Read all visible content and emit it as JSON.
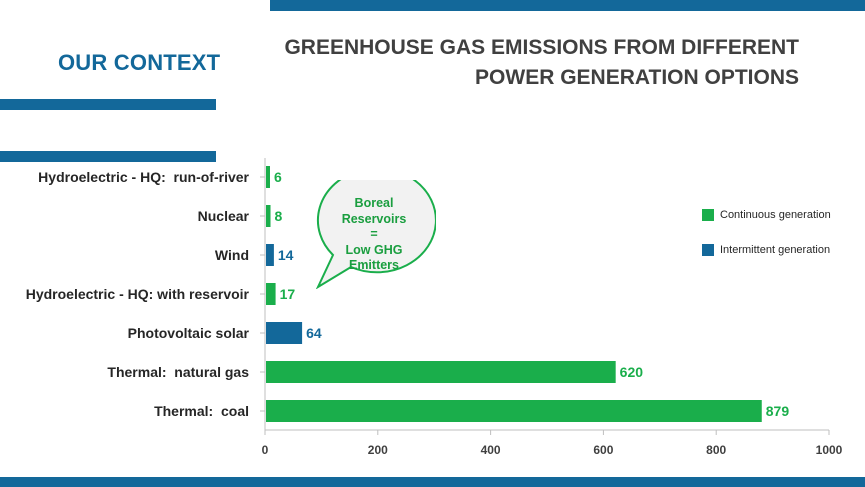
{
  "slide": {
    "section_title": "OUR CONTEXT",
    "title_line1": "GREENHOUSE GAS EMISSIONS FROM DIFFERENT",
    "title_line2": "POWER GENERATION OPTIONS"
  },
  "callout": {
    "lines": [
      "Boreal",
      "Reservoirs",
      "=",
      "Low GHG",
      "Emitters"
    ]
  },
  "colors": {
    "continuous": "#1aae4b",
    "intermittent": "#13689a",
    "accent": "#13689a"
  },
  "legend": [
    {
      "label": "Continuous generation",
      "color": "#1aae4b"
    },
    {
      "label": "Intermittent generation",
      "color": "#13689a"
    }
  ],
  "chart_data": {
    "type": "bar",
    "orientation": "horizontal",
    "title": "GREENHOUSE GAS EMISSIONS FROM DIFFERENT POWER GENERATION OPTIONS",
    "xlabel": "",
    "ylabel": "",
    "xlim": [
      0,
      1000
    ],
    "xticks": [
      0,
      200,
      400,
      600,
      800,
      1000
    ],
    "grid": false,
    "legend_position": "right",
    "categories": [
      "Hydroelectric - HQ:  run-of-river",
      "Nuclear",
      "Wind",
      "Hydroelectric - HQ: with reservoir",
      "Photovoltaic solar",
      "Thermal:  natural gas",
      "Thermal:  coal"
    ],
    "values": [
      6,
      8,
      14,
      17,
      64,
      620,
      879
    ],
    "generation_type": [
      "Continuous generation",
      "Continuous generation",
      "Intermittent generation",
      "Continuous generation",
      "Intermittent generation",
      "Continuous generation",
      "Continuous generation"
    ]
  }
}
